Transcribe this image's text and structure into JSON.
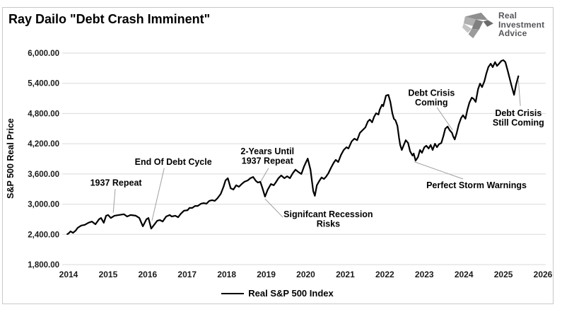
{
  "header": {
    "title": "Ray Dailo \"Debt Crash Imminent\""
  },
  "logo": {
    "icon": "eagle-icon",
    "lines": [
      "Real",
      "Investment",
      "Advice"
    ]
  },
  "colors": {
    "line": "#000000",
    "grid": "#d9d9d9",
    "leader": "#a0a0a0",
    "axis_text": "#1a1a1a",
    "logo_text": "#55565a",
    "border": "#c9c9c9"
  },
  "chart_data": {
    "type": "line",
    "title": "Ray Dailo \"Debt Crash Imminent\"",
    "xlabel": "",
    "ylabel": "S&P 500 Real Price",
    "grid": "horizontal",
    "xlim": [
      2014,
      2026
    ],
    "ylim": [
      1800,
      6000
    ],
    "x_ticks": [
      2014,
      2015,
      2016,
      2017,
      2018,
      2019,
      2020,
      2021,
      2022,
      2023,
      2024,
      2025,
      2026
    ],
    "y_ticks": [
      1800,
      2400,
      3000,
      3600,
      4200,
      4800,
      5400,
      6000
    ],
    "y_tick_labels": [
      "1,800.00",
      "2,400.00",
      "3,000.00",
      "3,600.00",
      "4,200.00",
      "4,800.00",
      "5,400.00",
      "6,000.00"
    ],
    "legend": {
      "position": "bottom",
      "entries": [
        {
          "label": "Real S&P 500 Index",
          "color": "#000000"
        }
      ]
    },
    "series": [
      {
        "name": "Real S&P 500 Index",
        "color": "#000000",
        "x": [
          2013.97,
          2014.0,
          2014.05,
          2014.11,
          2014.18,
          2014.23,
          2014.32,
          2014.41,
          2014.5,
          2014.59,
          2014.68,
          2014.77,
          2014.82,
          2014.89,
          2014.95,
          2015.0,
          2015.07,
          2015.16,
          2015.27,
          2015.4,
          2015.48,
          2015.57,
          2015.7,
          2015.79,
          2015.88,
          2015.97,
          2016.02,
          2016.09,
          2016.16,
          2016.24,
          2016.31,
          2016.38,
          2016.47,
          2016.56,
          2016.61,
          2016.7,
          2016.77,
          2016.84,
          2016.92,
          2017.01,
          2017.06,
          2017.13,
          2017.2,
          2017.27,
          2017.35,
          2017.42,
          2017.49,
          2017.56,
          2017.63,
          2017.7,
          2017.77,
          2017.85,
          2017.92,
          2017.97,
          2018.03,
          2018.1,
          2018.17,
          2018.24,
          2018.31,
          2018.38,
          2018.45,
          2018.53,
          2018.6,
          2018.67,
          2018.74,
          2018.79,
          2018.85,
          2018.9,
          2018.97,
          2019.04,
          2019.12,
          2019.19,
          2019.24,
          2019.31,
          2019.38,
          2019.46,
          2019.53,
          2019.6,
          2019.67,
          2019.74,
          2019.81,
          2019.89,
          2019.96,
          2020.05,
          2020.12,
          2020.19,
          2020.23,
          2020.28,
          2020.35,
          2020.4,
          2020.46,
          2020.51,
          2020.57,
          2020.64,
          2020.71,
          2020.76,
          2020.82,
          2020.89,
          2020.96,
          2021.03,
          2021.08,
          2021.16,
          2021.23,
          2021.3,
          2021.37,
          2021.44,
          2021.51,
          2021.57,
          2021.62,
          2021.68,
          2021.73,
          2021.78,
          2021.84,
          2021.87,
          2021.93,
          2021.96,
          2022.0,
          2022.03,
          2022.09,
          2022.14,
          2022.19,
          2022.23,
          2022.27,
          2022.32,
          2022.36,
          2022.39,
          2022.43,
          2022.48,
          2022.53,
          2022.59,
          2022.64,
          2022.7,
          2022.73,
          2022.78,
          2022.84,
          2022.89,
          2022.94,
          2023.0,
          2023.05,
          2023.11,
          2023.16,
          2023.21,
          2023.27,
          2023.32,
          2023.37,
          2023.43,
          2023.48,
          2023.53,
          2023.59,
          2023.64,
          2023.7,
          2023.73,
          2023.77,
          2023.82,
          2023.87,
          2023.93,
          2023.98,
          2024.04,
          2024.09,
          2024.14,
          2024.2,
          2024.25,
          2024.3,
          2024.36,
          2024.41,
          2024.46,
          2024.52,
          2024.57,
          2024.62,
          2024.68,
          2024.73,
          2024.79,
          2024.84,
          2024.89,
          2024.95,
          2025.0,
          2025.05,
          2025.11,
          2025.16,
          2025.21,
          2025.27,
          2025.32,
          2025.38
        ],
        "y": [
          2405,
          2420,
          2460,
          2430,
          2475,
          2530,
          2575,
          2590,
          2630,
          2655,
          2600,
          2700,
          2725,
          2630,
          2770,
          2785,
          2725,
          2770,
          2785,
          2800,
          2755,
          2785,
          2770,
          2725,
          2560,
          2700,
          2725,
          2515,
          2585,
          2670,
          2685,
          2655,
          2755,
          2785,
          2755,
          2770,
          2740,
          2810,
          2870,
          2880,
          2925,
          2925,
          2965,
          2965,
          3010,
          3020,
          3010,
          3065,
          3080,
          3065,
          3120,
          3205,
          3345,
          3470,
          3515,
          3315,
          3290,
          3375,
          3345,
          3400,
          3445,
          3470,
          3515,
          3540,
          3460,
          3430,
          3445,
          3330,
          3150,
          3290,
          3400,
          3375,
          3430,
          3515,
          3570,
          3515,
          3555,
          3515,
          3610,
          3685,
          3640,
          3600,
          3755,
          3905,
          3685,
          3260,
          3165,
          3375,
          3470,
          3530,
          3500,
          3540,
          3610,
          3725,
          3825,
          3880,
          3835,
          3975,
          4075,
          4130,
          4105,
          4245,
          4300,
          4270,
          4415,
          4470,
          4525,
          4640,
          4680,
          4625,
          4735,
          4805,
          4780,
          4875,
          4975,
          4945,
          5060,
          5155,
          5170,
          5030,
          4805,
          4695,
          4665,
          4555,
          4315,
          4175,
          4075,
          4175,
          4270,
          4215,
          4050,
          3965,
          4005,
          3865,
          3935,
          4075,
          4020,
          4130,
          4160,
          4105,
          4175,
          4075,
          4200,
          4130,
          4190,
          4215,
          4345,
          4500,
          4540,
          4470,
          4415,
          4345,
          4285,
          4415,
          4580,
          4710,
          4765,
          4695,
          4875,
          5015,
          5115,
          5090,
          5030,
          5285,
          5395,
          5325,
          5440,
          5595,
          5720,
          5790,
          5720,
          5820,
          5745,
          5790,
          5845,
          5860,
          5820,
          5650,
          5495,
          5340,
          5170,
          5370,
          5540
        ]
      }
    ],
    "annotations": [
      {
        "id": "1937-repeat",
        "lines": [
          "1937 Repeat"
        ],
        "text_x": 2015.2,
        "text_y": 3420,
        "leader": [
          2015.18,
          3300,
          2015.13,
          2830
        ]
      },
      {
        "id": "end-of-debt-cycle",
        "lines": [
          "End Of Debt Cycle"
        ],
        "text_x": 2016.65,
        "text_y": 3840,
        "leader": [
          2016.42,
          3715,
          2016.11,
          2675
        ]
      },
      {
        "id": "2-years-until-1937-repeat",
        "lines": [
          "2-Years Until",
          "1937 Repeat"
        ],
        "text_x": 2019.03,
        "text_y": 3955,
        "leader": [
          2019.06,
          3715,
          2018.87,
          3460
        ]
      },
      {
        "id": "signifcant-recession-risks",
        "lines": [
          "Signifcant Recession",
          "Risks"
        ],
        "text_x": 2020.57,
        "text_y": 2700,
        "leader": [
          2019.42,
          2740,
          2018.97,
          3105
        ]
      },
      {
        "id": "debt-crisis-coming",
        "lines": [
          "Debt Crisis",
          "Coming"
        ],
        "text_x": 2023.18,
        "text_y": 5115,
        "leader": [
          2023.32,
          4920,
          2023.71,
          4475
        ]
      },
      {
        "id": "perfect-storm-warnings",
        "lines": [
          "Perfect Storm Warnings"
        ],
        "text_x": 2024.32,
        "text_y": 3375,
        "leader": [
          2023.98,
          3500,
          2022.75,
          3840
        ]
      },
      {
        "id": "debt-crisis-still-coming",
        "lines": [
          "Debt Crisis",
          "Still Coming"
        ],
        "text_x": 2025.38,
        "text_y": 4710,
        "leader": [
          2025.43,
          4950,
          2025.38,
          5455
        ]
      }
    ]
  }
}
